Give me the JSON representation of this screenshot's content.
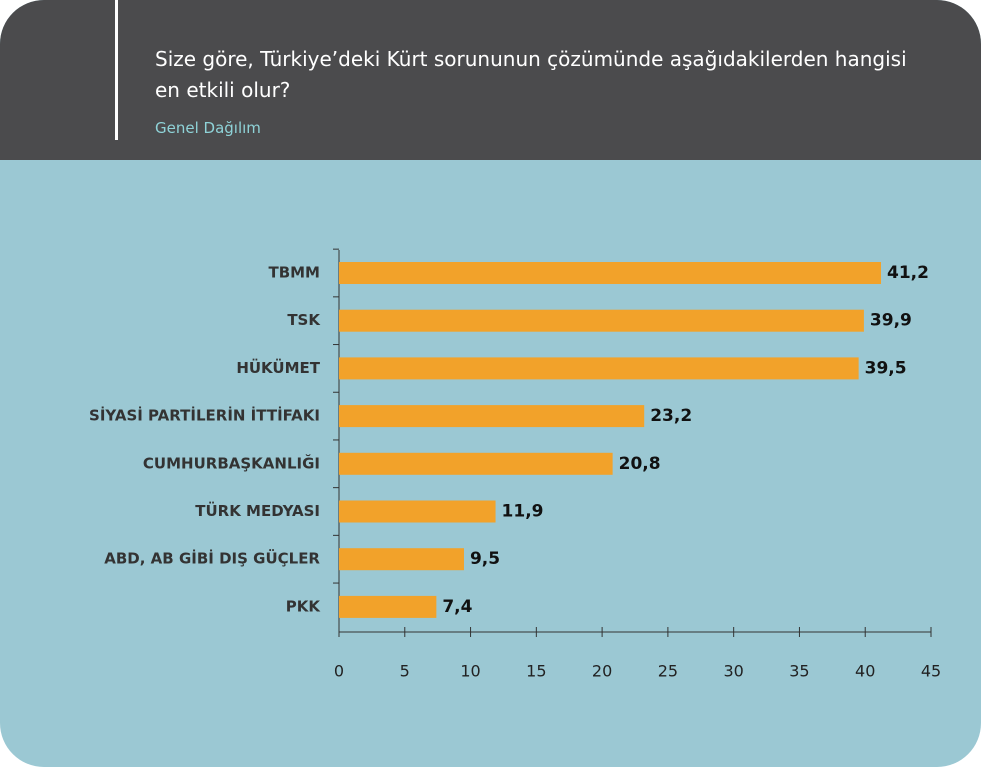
{
  "chart_data": {
    "type": "bar",
    "orientation": "horizontal",
    "title": "Size göre, Türkiye’deki Kürt sorununun çözümünde aşağıdakilerden hangisi en etkili olur?",
    "subtitle": "Genel Dağılım",
    "categories": [
      "TBMM",
      "TSK",
      "HÜKÜMET",
      "SİYASİ PARTİLERİN İTTİFAKI",
      "CUMHURBAŞKANLIĞI",
      "TÜRK MEDYASI",
      "ABD, AB GİBİ DIŞ GÜÇLER",
      "PKK"
    ],
    "values": [
      41.2,
      39.9,
      39.5,
      23.2,
      20.8,
      11.9,
      9.5,
      7.4
    ],
    "value_labels": [
      "41,2",
      "39,9",
      "39,5",
      "23,2",
      "20,8",
      "11,9",
      "9,5",
      "7,4"
    ],
    "color": "#f2a22a",
    "xlim": [
      0,
      45
    ],
    "xticks": [
      0,
      5,
      10,
      15,
      20,
      25,
      30,
      35,
      40,
      45
    ]
  }
}
